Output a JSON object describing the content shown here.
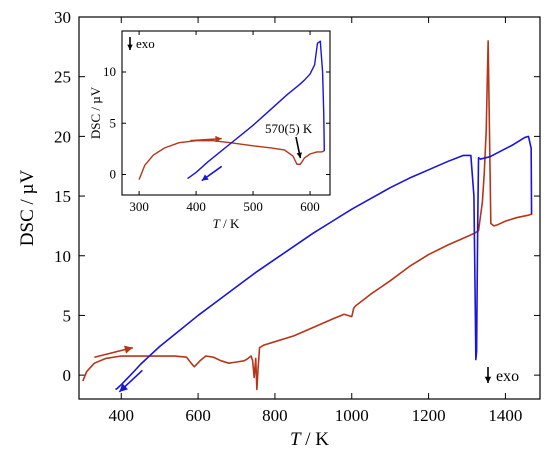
{
  "chart_data": [
    {
      "type": "line",
      "title": "",
      "xlabel_italic": "T",
      "xlabel_rest": " / K",
      "ylabel": "DSC / µV",
      "xlim": [
        290,
        1490
      ],
      "ylim": [
        -2,
        30
      ],
      "xticks": [
        400,
        600,
        800,
        1000,
        1200,
        1400
      ],
      "yticks": [
        0,
        5,
        10,
        15,
        20,
        25,
        30
      ],
      "grid": false,
      "annotation": "exo",
      "series": [
        {
          "color": "#b5361b",
          "direction": "heating",
          "x": [
            300,
            310,
            330,
            360,
            400,
            450,
            500,
            540,
            570,
            582,
            590,
            605,
            620,
            640,
            660,
            680,
            700,
            720,
            730,
            738,
            742,
            746,
            750,
            753,
            756,
            760,
            770,
            800,
            850,
            900,
            950,
            980,
            1000,
            1005,
            1010,
            1050,
            1100,
            1150,
            1200,
            1250,
            1300,
            1320,
            1330,
            1340,
            1345,
            1350,
            1355,
            1362,
            1370,
            1380,
            1400,
            1430,
            1460,
            1470
          ],
          "y": [
            -0.5,
            0.3,
            1.0,
            1.4,
            1.6,
            1.6,
            1.6,
            1.6,
            1.5,
            1.0,
            0.7,
            1.2,
            1.6,
            1.5,
            1.2,
            1.0,
            1.1,
            1.2,
            1.4,
            1.6,
            1.2,
            -0.2,
            1.4,
            -1.2,
            0.5,
            2.3,
            2.5,
            2.8,
            3.3,
            4.0,
            4.7,
            5.1,
            4.9,
            5.6,
            5.8,
            6.8,
            7.9,
            9.1,
            10.1,
            10.9,
            11.6,
            11.9,
            12.1,
            14.5,
            17.0,
            20.5,
            28.0,
            12.7,
            12.5,
            12.6,
            12.9,
            13.2,
            13.4,
            13.5
          ]
        },
        {
          "color": "#1a14d8",
          "direction": "cooling",
          "x": [
            1468,
            1467,
            1460,
            1450,
            1420,
            1390,
            1360,
            1335,
            1330,
            1328,
            1326,
            1325,
            1323,
            1321,
            1318,
            1310,
            1290,
            1250,
            1200,
            1150,
            1100,
            1050,
            1000,
            950,
            900,
            850,
            800,
            750,
            700,
            650,
            600,
            550,
            500,
            470,
            450,
            430,
            415,
            400,
            390,
            385
          ],
          "y": [
            13.5,
            19.0,
            20.0,
            19.9,
            19.3,
            18.8,
            18.3,
            18.1,
            18.2,
            13.0,
            6.0,
            2.0,
            1.3,
            7.0,
            15.0,
            18.4,
            18.4,
            17.9,
            17.2,
            16.5,
            15.7,
            14.8,
            13.9,
            12.9,
            11.9,
            10.8,
            9.7,
            8.6,
            7.4,
            6.2,
            5.0,
            3.7,
            2.4,
            1.5,
            0.9,
            0.2,
            -0.3,
            -0.8,
            -1.1,
            -1.2
          ]
        }
      ]
    },
    {
      "type": "line",
      "title": "",
      "xlabel_italic": "T",
      "xlabel_rest": " / K",
      "ylabel": "DSC / µV",
      "xlim": [
        270,
        635
      ],
      "ylim": [
        -2,
        14
      ],
      "xticks": [
        300,
        400,
        500,
        600
      ],
      "yticks": [
        0,
        5,
        10
      ],
      "grid": false,
      "annotation": "exo",
      "peak_label": "570(5) K",
      "series": [
        {
          "color": "#b5361b",
          "direction": "heating",
          "x": [
            300,
            310,
            325,
            345,
            370,
            400,
            430,
            460,
            500,
            530,
            555,
            570,
            577,
            583,
            590,
            600,
            612,
            620,
            625
          ],
          "y": [
            -0.5,
            0.9,
            1.9,
            2.6,
            3.1,
            3.3,
            3.3,
            3.1,
            2.8,
            2.6,
            2.4,
            1.8,
            1.0,
            1.0,
            1.6,
            2.0,
            2.2,
            2.2,
            2.3
          ]
        },
        {
          "color": "#1a14d8",
          "direction": "cooling",
          "x": [
            625,
            624,
            622,
            618,
            613,
            608,
            600,
            590,
            580,
            560,
            540,
            520,
            500,
            480,
            460,
            440,
            420,
            400,
            390,
            385
          ],
          "y": [
            2.3,
            6.0,
            10.0,
            13.0,
            12.8,
            10.7,
            9.8,
            9.2,
            8.7,
            7.8,
            6.8,
            5.8,
            4.8,
            3.9,
            3.0,
            2.1,
            1.2,
            0.2,
            -0.2,
            -0.4
          ]
        }
      ]
    }
  ]
}
